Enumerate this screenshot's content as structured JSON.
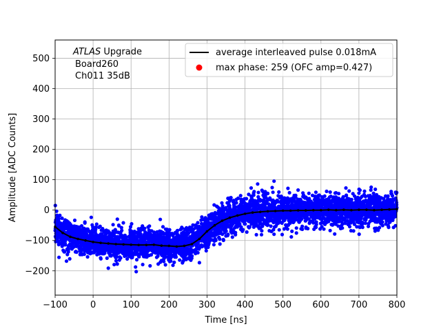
{
  "chart_data": {
    "type": "scatter",
    "title": "",
    "xlabel": "Time [ns]",
    "ylabel": "Amplitude [ADC Counts]",
    "xlim": [
      -100,
      800
    ],
    "ylim": [
      -280,
      560
    ],
    "xticks": [
      -100,
      0,
      100,
      200,
      300,
      400,
      500,
      600,
      700,
      800
    ],
    "yticks": [
      -200,
      -100,
      0,
      100,
      200,
      300,
      400,
      500
    ],
    "grid": true,
    "legend_position": "top-right",
    "annotation": {
      "line1_italic": "ATLAS",
      "line1_rest": " Upgrade",
      "line2": "Board260",
      "line3": "Ch011 35dB"
    },
    "series": [
      {
        "name": "average interleaved pulse 0.018mA",
        "kind": "line",
        "color": "#000000",
        "x": [
          -100,
          -80,
          -60,
          -40,
          -20,
          0,
          20,
          40,
          60,
          80,
          100,
          120,
          140,
          160,
          180,
          200,
          220,
          240,
          260,
          280,
          300,
          320,
          340,
          360,
          380,
          400,
          420,
          440,
          460,
          480,
          500,
          520,
          540,
          560,
          580,
          600,
          620,
          640,
          660,
          680,
          700,
          720,
          740,
          760,
          780,
          800
        ],
        "y": [
          -55,
          -75,
          -88,
          -95,
          -100,
          -105,
          -108,
          -110,
          -112,
          -113,
          -114,
          -115,
          -115,
          -114,
          -117,
          -118,
          -120,
          -118,
          -112,
          -95,
          -70,
          -50,
          -35,
          -25,
          -18,
          -12,
          -8,
          -6,
          -4,
          -3,
          -2,
          -2,
          -1,
          -1,
          0,
          0,
          1,
          0,
          1,
          0,
          1,
          1,
          0,
          1,
          2,
          3
        ]
      },
      {
        "name": "data-points",
        "kind": "scatter",
        "color": "#0000ff",
        "noise_spread": 26
      },
      {
        "name": "max phase: 259 (OFC amp=0.427)",
        "kind": "marker",
        "color": "#ff0000"
      }
    ]
  }
}
